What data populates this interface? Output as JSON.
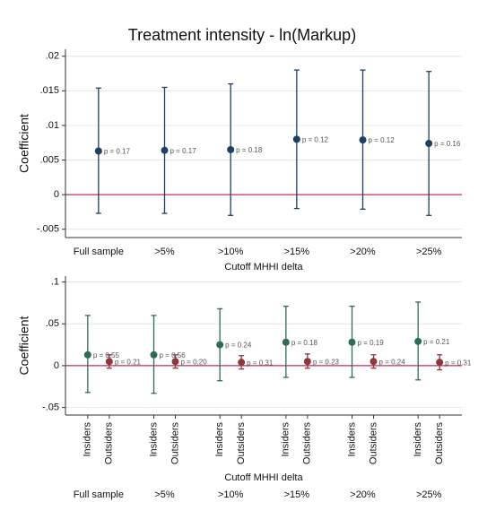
{
  "chart_data": [
    {
      "type": "errorbar",
      "title": "Treatment intensity - ln(Markup)",
      "ylabel": "Coefficient",
      "xlabel": "Cutoff MHHI delta",
      "categories": [
        "Full sample",
        ">5%",
        ">10%",
        ">15%",
        ">20%",
        ">25%"
      ],
      "series": [
        {
          "name": null,
          "color": "#1f3f63",
          "values": [
            0.0063,
            0.0064,
            0.0065,
            0.008,
            0.0079,
            0.0074
          ],
          "ci_low": [
            -0.0027,
            -0.0027,
            -0.003,
            -0.002,
            -0.0021,
            -0.003
          ],
          "ci_high": [
            0.0154,
            0.0155,
            0.016,
            0.018,
            0.018,
            0.0178
          ],
          "p_labels": [
            "p = 0.17",
            "p = 0.17",
            "p = 0.18",
            "p = 0.12",
            "p = 0.12",
            "p = 0.16"
          ]
        }
      ],
      "ylim": [
        -0.0062,
        0.021
      ],
      "yticks": [
        {
          "value": -0.005,
          "label": "-.005"
        },
        0,
        {
          "value": 0.005,
          "label": ".005"
        },
        {
          "value": 0.01,
          "label": ".01"
        },
        {
          "value": 0.015,
          "label": ".015"
        },
        {
          "value": 0.02,
          "label": ".02"
        }
      ],
      "grid": true,
      "refline_color": "#c0305a"
    },
    {
      "type": "errorbar",
      "ylabel": "Coefficient",
      "xlabel": "Cutoff MHHI delta",
      "categories": [
        "Full sample",
        ">5%",
        ">10%",
        ">15%",
        ">20%",
        ">25%"
      ],
      "series": [
        {
          "name": "Insiders",
          "color": "#2e6b5a",
          "values": [
            0.013,
            0.013,
            0.025,
            0.028,
            0.028,
            0.029
          ],
          "ci_low": [
            -0.032,
            -0.033,
            -0.018,
            -0.014,
            -0.014,
            -0.017
          ],
          "ci_high": [
            0.06,
            0.06,
            0.068,
            0.071,
            0.071,
            0.076
          ],
          "p_labels": [
            "p = 0.55",
            "p = 0.56",
            "p = 0.24",
            "p = 0.18",
            "p = 0.19",
            "p = 0.21"
          ]
        },
        {
          "name": "Outsiders",
          "color": "#8b3a3a",
          "values": [
            0.005,
            0.005,
            0.004,
            0.005,
            0.005,
            0.004
          ],
          "ci_low": [
            -0.003,
            -0.003,
            -0.004,
            -0.003,
            -0.003,
            -0.005
          ],
          "ci_high": [
            0.013,
            0.013,
            0.012,
            0.014,
            0.013,
            0.013
          ],
          "p_labels": [
            "p = 0.21",
            "p = 0.20",
            "p = 0.31",
            "p = 0.23",
            "p = 0.24",
            "p = 0.31"
          ]
        }
      ],
      "ylim": [
        -0.059,
        0.107
      ],
      "yticks": [
        {
          "value": -0.05,
          "label": "-.05"
        },
        0,
        {
          "value": 0.05,
          "label": ".05"
        },
        {
          "value": 0.1,
          "label": ".1"
        }
      ],
      "grid": true,
      "refline_color": "#c0305a"
    }
  ]
}
